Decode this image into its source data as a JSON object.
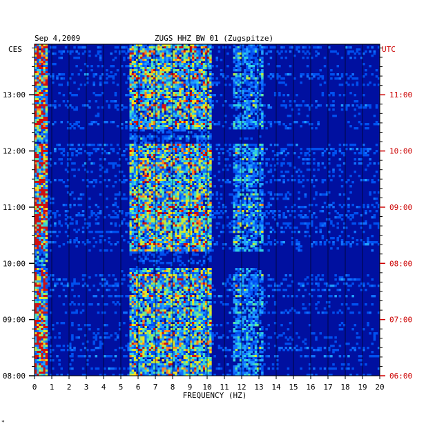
{
  "chart_data": {
    "type": "heatmap",
    "date_label": "Sep 4,2009",
    "title": "ZUGS HHZ BW 01 (Zugspitze)",
    "xlabel": "FREQUENCY (HZ)",
    "left_axis_label": "CES",
    "right_axis_label": "UTC",
    "xlim": [
      0,
      20
    ],
    "x_ticks": [
      "0",
      "1",
      "2",
      "3",
      "4",
      "5",
      "6",
      "7",
      "8",
      "9",
      "10",
      "11",
      "12",
      "13",
      "14",
      "15",
      "16",
      "17",
      "18",
      "19",
      "20"
    ],
    "left_ticks": [
      {
        "hours": 13,
        "label": "13:00"
      },
      {
        "hours": 12,
        "label": "12:00"
      },
      {
        "hours": 11,
        "label": "11:00"
      },
      {
        "hours": 10,
        "label": "10:00"
      },
      {
        "hours": 9,
        "label": "09:00"
      },
      {
        "hours": 8,
        "label": "08:00"
      }
    ],
    "right_ticks": [
      {
        "hours": 11,
        "label": "11:00"
      },
      {
        "hours": 10,
        "label": "10:00"
      },
      {
        "hours": 9,
        "label": "09:00"
      },
      {
        "hours": 8,
        "label": "08:00"
      },
      {
        "hours": 7,
        "label": "07:00"
      },
      {
        "hours": 6,
        "label": "06:00"
      }
    ],
    "left_time_range_hours": [
      8.0,
      13.9
    ],
    "colors": {
      "low": "#0010a0",
      "mid": "#20a0ff",
      "high": "#e0e020",
      "peak": "#d01010"
    },
    "grid": true
  },
  "footer_mark": "*"
}
